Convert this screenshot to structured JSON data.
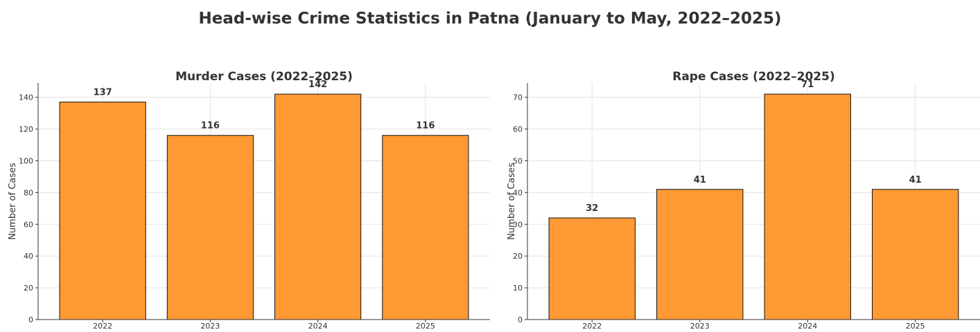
{
  "title": "Head-wise Crime Statistics in Patna (January to May, 2022–2025)",
  "chart_data": [
    {
      "type": "bar",
      "title": "Murder Cases (2022–2025)",
      "xlabel": "",
      "ylabel": "Number of Cases",
      "categories": [
        "2022",
        "2023",
        "2024",
        "2025"
      ],
      "values": [
        137,
        116,
        142,
        116
      ],
      "data_labels": [
        "137",
        "116",
        "142",
        "116"
      ],
      "ylim": [
        0,
        149
      ],
      "yticks": [
        0,
        20,
        40,
        60,
        80,
        100,
        120,
        140
      ],
      "bar_color": "#FF9933",
      "grid": true
    },
    {
      "type": "bar",
      "title": "Rape Cases (2022–2025)",
      "xlabel": "",
      "ylabel": "Number of Cases",
      "categories": [
        "2022",
        "2023",
        "2024",
        "2025"
      ],
      "values": [
        32,
        41,
        71,
        41
      ],
      "data_labels": [
        "32",
        "41",
        "71",
        "41"
      ],
      "ylim": [
        0,
        74.5
      ],
      "yticks": [
        0,
        10,
        20,
        30,
        40,
        50,
        60,
        70
      ],
      "bar_color": "#FF9933",
      "grid": true
    }
  ]
}
